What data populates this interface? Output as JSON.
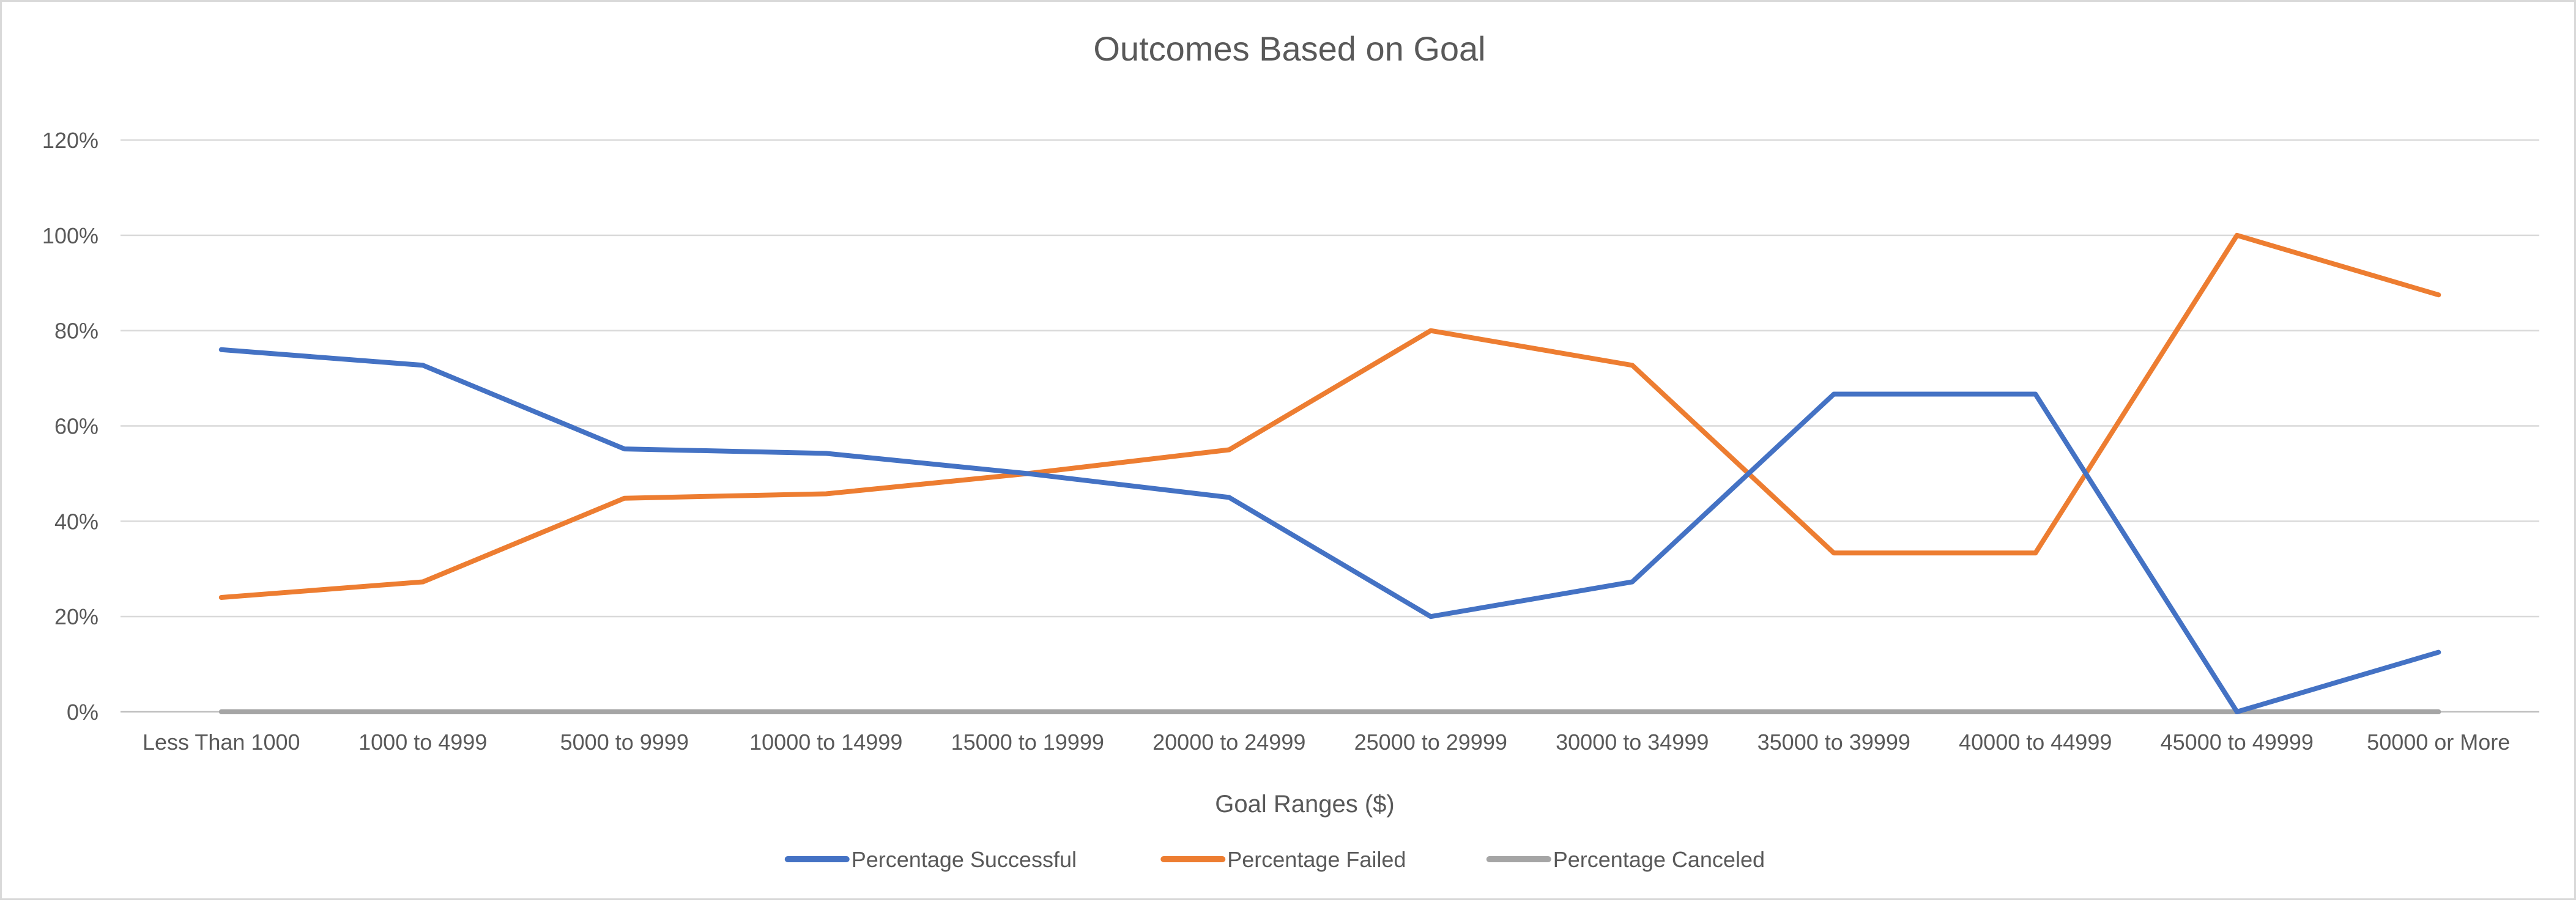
{
  "chart_data": {
    "type": "line",
    "title": "Outcomes Based on Goal",
    "xlabel": "Goal Ranges ($)",
    "ylabel": "",
    "ylim": [
      0,
      1.2
    ],
    "yticks": [
      0,
      0.2,
      0.4,
      0.6,
      0.8,
      1.0,
      1.2
    ],
    "ytick_labels": [
      "0%",
      "20%",
      "40%",
      "60%",
      "80%",
      "100%",
      "120%"
    ],
    "grid": true,
    "legend_position": "bottom",
    "categories": [
      "Less Than 1000",
      "1000 to 4999",
      "5000 to 9999",
      "10000 to 14999",
      "15000 to 19999",
      "20000 to 24999",
      "25000 to 29999",
      "30000 to 34999",
      "35000 to 39999",
      "40000 to 44999",
      "45000 to 49999",
      "50000 or More"
    ],
    "series": [
      {
        "name": "Percentage Successful",
        "color": "#4472c4",
        "values": [
          0.76,
          0.7273,
          0.5517,
          0.5424,
          0.5,
          0.45,
          0.2,
          0.2727,
          0.6667,
          0.6667,
          0.0,
          0.125
        ]
      },
      {
        "name": "Percentage Failed",
        "color": "#ed7d31",
        "values": [
          0.24,
          0.2727,
          0.4483,
          0.4576,
          0.5,
          0.55,
          0.8,
          0.7273,
          0.3333,
          0.3333,
          1.0,
          0.875
        ]
      },
      {
        "name": "Percentage Canceled",
        "color": "#a5a5a5",
        "values": [
          0,
          0,
          0,
          0,
          0,
          0,
          0,
          0,
          0,
          0,
          0,
          0
        ]
      }
    ]
  }
}
